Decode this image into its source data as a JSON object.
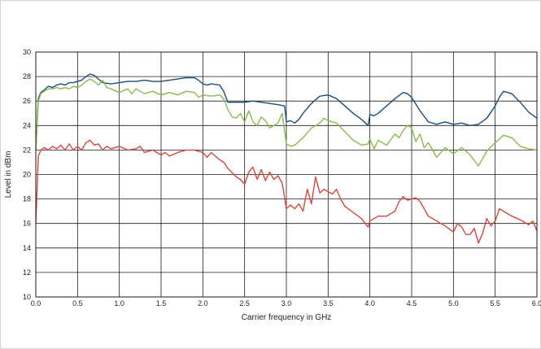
{
  "chart_data": {
    "type": "line",
    "title": "",
    "xlabel": "Carrier frequency in GHz",
    "ylabel": "Level in dBm",
    "xlim": [
      0,
      6
    ],
    "ylim": [
      10,
      30
    ],
    "grid": true,
    "x_ticks": [
      "0.0",
      "0.5",
      "1.0",
      "1.5",
      "2.0",
      "2.5",
      "3.0",
      "3.5",
      "4.0",
      "4.5",
      "5.0",
      "5.5",
      "6.0"
    ],
    "y_ticks": [
      "10",
      "12",
      "14",
      "16",
      "18",
      "20",
      "22",
      "24",
      "26",
      "28",
      "30"
    ],
    "series": [
      {
        "color": "#1b4f7a",
        "x": [
          0,
          0.03,
          0.06,
          0.1,
          0.15,
          0.2,
          0.25,
          0.3,
          0.35,
          0.4,
          0.45,
          0.5,
          0.55,
          0.6,
          0.65,
          0.7,
          0.75,
          0.8,
          0.9,
          1.0,
          1.1,
          1.2,
          1.3,
          1.4,
          1.5,
          1.6,
          1.7,
          1.8,
          1.9,
          1.95,
          2.0,
          2.05,
          2.1,
          2.2,
          2.25,
          2.3,
          2.4,
          2.5,
          2.6,
          2.7,
          2.8,
          2.9,
          2.98,
          3.0,
          3.05,
          3.1,
          3.15,
          3.2,
          3.3,
          3.4,
          3.5,
          3.6,
          3.7,
          3.8,
          3.9,
          3.98,
          4.0,
          4.05,
          4.1,
          4.15,
          4.2,
          4.3,
          4.4,
          4.45,
          4.5,
          4.6,
          4.7,
          4.8,
          4.9,
          5.0,
          5.1,
          5.2,
          5.3,
          5.4,
          5.5,
          5.55,
          5.6,
          5.7,
          5.8,
          5.9,
          6.0
        ],
        "y": [
          22,
          26.2,
          26.7,
          26.9,
          27.2,
          27.1,
          27.3,
          27.4,
          27.3,
          27.5,
          27.5,
          27.6,
          27.7,
          28.0,
          28.2,
          28.1,
          27.8,
          27.5,
          27.4,
          27.5,
          27.6,
          27.6,
          27.7,
          27.6,
          27.6,
          27.7,
          27.8,
          27.9,
          27.9,
          27.7,
          27.4,
          27.3,
          27.4,
          27.3,
          26.8,
          25.9,
          25.9,
          25.9,
          26.0,
          25.9,
          25.8,
          25.7,
          25.6,
          24.3,
          24.4,
          24.2,
          24.5,
          25.0,
          25.8,
          26.4,
          26.5,
          26.2,
          25.6,
          25.0,
          24.5,
          24.0,
          24.9,
          24.8,
          25.0,
          25.3,
          25.6,
          26.2,
          26.7,
          26.6,
          26.3,
          25.2,
          24.3,
          24.1,
          24.3,
          24.1,
          24.2,
          24.0,
          24.1,
          24.6,
          25.6,
          26.3,
          26.8,
          26.6,
          25.9,
          25.1,
          24.6
        ]
      },
      {
        "color": "#8bbb4a",
        "x": [
          0,
          0.03,
          0.06,
          0.1,
          0.15,
          0.2,
          0.25,
          0.3,
          0.35,
          0.4,
          0.45,
          0.5,
          0.55,
          0.6,
          0.65,
          0.7,
          0.75,
          0.8,
          0.85,
          0.9,
          1.0,
          1.1,
          1.15,
          1.2,
          1.3,
          1.4,
          1.5,
          1.6,
          1.7,
          1.8,
          1.9,
          1.95,
          2.0,
          2.1,
          2.2,
          2.25,
          2.3,
          2.35,
          2.4,
          2.45,
          2.5,
          2.55,
          2.6,
          2.65,
          2.7,
          2.75,
          2.8,
          2.9,
          2.95,
          3.0,
          3.05,
          3.1,
          3.2,
          3.3,
          3.4,
          3.45,
          3.5,
          3.6,
          3.7,
          3.8,
          3.9,
          3.98,
          4.0,
          4.05,
          4.1,
          4.2,
          4.3,
          4.35,
          4.4,
          4.45,
          4.5,
          4.55,
          4.6,
          4.65,
          4.7,
          4.75,
          4.8,
          4.9,
          5.0,
          5.1,
          5.2,
          5.3,
          5.4,
          5.5,
          5.6,
          5.7,
          5.8,
          5.9,
          6.0
        ],
        "y": [
          22,
          26.0,
          26.6,
          26.8,
          27.0,
          27.0,
          27.1,
          27.0,
          27.1,
          27.0,
          27.2,
          27.1,
          27.3,
          27.6,
          27.8,
          27.6,
          27.3,
          27.7,
          27.1,
          27.0,
          26.7,
          27.0,
          26.6,
          27.0,
          26.6,
          26.8,
          26.5,
          26.7,
          26.5,
          26.8,
          26.7,
          26.3,
          26.5,
          26.4,
          26.5,
          26.2,
          25.3,
          24.7,
          24.6,
          25.0,
          24.3,
          25.2,
          24.3,
          24.0,
          24.7,
          24.4,
          23.8,
          24.2,
          25.0,
          22.5,
          22.3,
          22.4,
          23.0,
          23.8,
          24.2,
          24.6,
          24.4,
          24.2,
          23.5,
          22.8,
          22.4,
          22.5,
          22.9,
          22.1,
          22.8,
          22.4,
          23.3,
          23.0,
          23.6,
          24.0,
          23.8,
          22.7,
          23.3,
          22.2,
          22.6,
          22.0,
          21.4,
          22.2,
          21.7,
          22.2,
          21.6,
          20.7,
          21.9,
          22.6,
          23.2,
          23.0,
          22.3,
          22.1,
          22.0
        ]
      },
      {
        "color": "#d9453a",
        "x": [
          0,
          0.03,
          0.06,
          0.1,
          0.15,
          0.2,
          0.25,
          0.3,
          0.35,
          0.4,
          0.45,
          0.5,
          0.55,
          0.6,
          0.65,
          0.7,
          0.75,
          0.8,
          0.85,
          0.9,
          1.0,
          1.1,
          1.2,
          1.25,
          1.3,
          1.4,
          1.5,
          1.55,
          1.6,
          1.7,
          1.8,
          1.9,
          2.0,
          2.05,
          2.1,
          2.2,
          2.25,
          2.3,
          2.4,
          2.45,
          2.5,
          2.55,
          2.6,
          2.65,
          2.7,
          2.75,
          2.8,
          2.85,
          2.9,
          2.95,
          3.0,
          3.05,
          3.1,
          3.15,
          3.2,
          3.25,
          3.3,
          3.35,
          3.4,
          3.45,
          3.5,
          3.55,
          3.6,
          3.65,
          3.7,
          3.8,
          3.9,
          3.98,
          4.0,
          4.1,
          4.2,
          4.3,
          4.35,
          4.4,
          4.45,
          4.5,
          4.55,
          4.6,
          4.7,
          4.8,
          4.9,
          5.0,
          5.05,
          5.1,
          5.15,
          5.2,
          5.25,
          5.3,
          5.35,
          5.4,
          5.45,
          5.5,
          5.55,
          5.6,
          5.7,
          5.8,
          5.9,
          5.95,
          6.0
        ],
        "y": [
          16,
          21.5,
          22.0,
          22.2,
          22.0,
          22.3,
          22.1,
          22.4,
          22.0,
          22.5,
          22.0,
          22.3,
          22.0,
          22.6,
          22.8,
          22.4,
          22.5,
          22.0,
          22.3,
          22.1,
          22.3,
          22.0,
          22.1,
          22.3,
          21.8,
          22.0,
          21.6,
          21.8,
          21.5,
          21.8,
          22.0,
          22.0,
          21.8,
          21.4,
          21.8,
          21.2,
          21.0,
          20.5,
          19.8,
          19.6,
          19.2,
          20.2,
          20.6,
          19.6,
          20.4,
          19.5,
          20.2,
          19.6,
          19.9,
          19.3,
          17.2,
          17.5,
          17.2,
          17.6,
          17.0,
          18.8,
          17.6,
          19.8,
          18.5,
          18.8,
          18.6,
          18.4,
          18.8,
          18.0,
          17.4,
          16.9,
          16.4,
          15.7,
          16.2,
          16.6,
          16.6,
          17.0,
          17.8,
          18.2,
          17.9,
          18.0,
          18.1,
          17.8,
          16.6,
          16.2,
          15.8,
          15.3,
          16.0,
          15.7,
          15.1,
          15.1,
          15.6,
          14.4,
          15.2,
          16.4,
          15.8,
          16.2,
          17.2,
          17.0,
          16.6,
          16.3,
          15.9,
          16.2,
          15.4
        ]
      }
    ]
  }
}
